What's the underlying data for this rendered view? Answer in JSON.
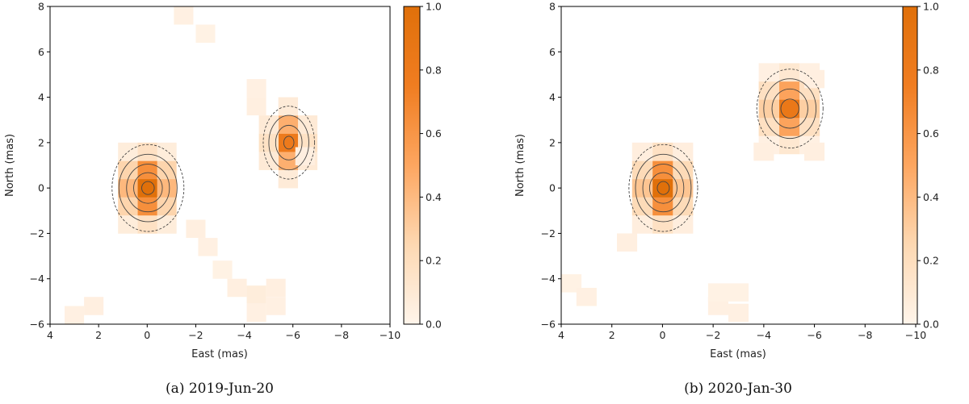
{
  "chart_data": [
    {
      "type": "heatmap",
      "caption": "(a) 2019-Jun-20",
      "xlabel": "East (mas)",
      "ylabel": "North (mas)",
      "xlim": [
        4,
        -10
      ],
      "ylim": [
        -6,
        8
      ],
      "xticks": [
        4,
        2,
        0,
        -2,
        -4,
        -6,
        -8,
        -10
      ],
      "yticks": [
        -6,
        -4,
        -2,
        0,
        2,
        4,
        6,
        8
      ],
      "xtick_labels": [
        "4",
        "2",
        "0",
        "−2",
        "−4",
        "−6",
        "−8",
        "−10"
      ],
      "ytick_labels": [
        "−6",
        "−4",
        "−2",
        "0",
        "2",
        "4",
        "6",
        "8"
      ],
      "colorbar": {
        "range": [
          0,
          1
        ],
        "ticks": [
          "0.0",
          "0.2",
          "0.4",
          "0.6",
          "0.8",
          "1.0"
        ],
        "colormap": "Oranges"
      },
      "pixel_size_mas": 0.8,
      "sources": [
        {
          "name": "primary",
          "east": 0.0,
          "north": 0.0,
          "peak": 1.0,
          "sigma_east": 0.6,
          "sigma_north": 0.85
        },
        {
          "name": "companion",
          "east": -5.8,
          "north": 2.0,
          "peak": 0.8,
          "sigma_east": 0.45,
          "sigma_north": 0.75
        }
      ],
      "faint_pixels": [
        [
          -1.5,
          7.6,
          0.04
        ],
        [
          -2.4,
          6.8,
          0.03
        ],
        [
          -4.5,
          4.4,
          0.04
        ],
        [
          -4.5,
          3.6,
          0.05
        ],
        [
          2.2,
          -5.2,
          0.05
        ],
        [
          3.0,
          -5.6,
          0.04
        ],
        [
          -2.5,
          -2.6,
          0.04
        ],
        [
          -3.1,
          -3.6,
          0.03
        ],
        [
          -3.7,
          -4.4,
          0.05
        ],
        [
          -4.5,
          -4.7,
          0.07
        ],
        [
          -5.3,
          -4.4,
          0.05
        ],
        [
          -5.3,
          -5.2,
          0.04
        ],
        [
          -4.5,
          -5.5,
          0.04
        ],
        [
          -6.5,
          1.4,
          0.05
        ],
        [
          -2.0,
          -1.8,
          0.05
        ]
      ],
      "contour_levels": [
        0.1,
        0.25,
        0.5,
        0.75,
        0.95
      ]
    },
    {
      "type": "heatmap",
      "caption": "(b) 2020-Jan-30",
      "xlabel": "East (mas)",
      "ylabel": "North (mas)",
      "xlim": [
        4,
        -10
      ],
      "ylim": [
        -6,
        8
      ],
      "xticks": [
        4,
        2,
        0,
        -2,
        -4,
        -6,
        -8,
        -10
      ],
      "yticks": [
        -6,
        -4,
        -2,
        0,
        2,
        4,
        6,
        8
      ],
      "xtick_labels": [
        "4",
        "2",
        "0",
        "−2",
        "−4",
        "−6",
        "−8",
        "−10"
      ],
      "ytick_labels": [
        "−6",
        "−4",
        "−2",
        "0",
        "2",
        "4",
        "6",
        "8"
      ],
      "colorbar": {
        "range": [
          0,
          1
        ],
        "ticks": [
          "0.0",
          "0.2",
          "0.4",
          "0.6",
          "0.8",
          "1.0"
        ],
        "colormap": "Oranges"
      },
      "pixel_size_mas": 0.8,
      "sources": [
        {
          "name": "primary",
          "east": 0.0,
          "north": 0.0,
          "peak": 1.0,
          "sigma_east": 0.55,
          "sigma_north": 0.85
        },
        {
          "name": "companion",
          "east": -5.0,
          "north": 3.5,
          "peak": 0.85,
          "sigma_east": 0.55,
          "sigma_north": 0.8
        }
      ],
      "faint_pixels": [
        [
          3.6,
          -4.2,
          0.03
        ],
        [
          3.0,
          -4.8,
          0.04
        ],
        [
          -2.2,
          -5.2,
          0.04
        ],
        [
          -2.2,
          -4.6,
          0.03
        ],
        [
          -3.0,
          -5.5,
          0.04
        ],
        [
          -3.0,
          -4.6,
          0.03
        ],
        [
          1.4,
          -2.4,
          0.05
        ],
        [
          -6.0,
          4.8,
          0.05
        ],
        [
          -4.0,
          1.6,
          0.05
        ],
        [
          -6.0,
          1.6,
          0.05
        ]
      ],
      "contour_levels": [
        0.1,
        0.25,
        0.5,
        0.75,
        0.95
      ]
    }
  ]
}
